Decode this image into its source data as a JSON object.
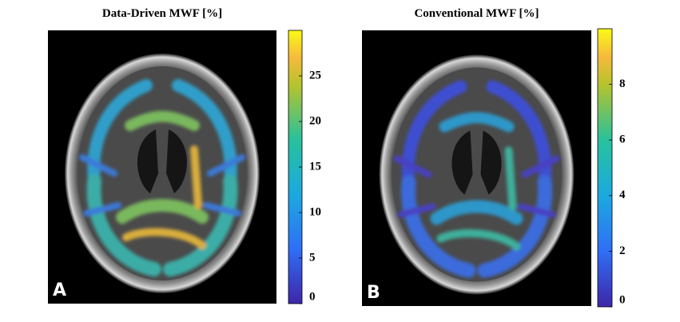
{
  "panels": [
    {
      "title": "Data-Driven MWF [%]",
      "label": "A",
      "colorbar": {
        "lim": [
          0,
          30
        ],
        "ticks": [
          0,
          5,
          10,
          15,
          20,
          25
        ]
      }
    },
    {
      "title": "Conventional MWF [%]",
      "label": "B",
      "colorbar": {
        "lim": [
          0,
          10
        ],
        "ticks": [
          0,
          2,
          4,
          6,
          8
        ]
      }
    }
  ]
}
